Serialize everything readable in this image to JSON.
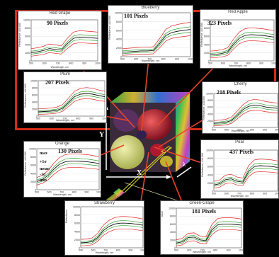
{
  "panels": [
    {
      "key": "red_grape",
      "title": "Red Grape",
      "count": "90 Pixels",
      "ylabel": "Reflectance, x10,000",
      "xlabel": "Wavelength, nm",
      "yticks": [
        "10000",
        "8000",
        "6000",
        "4000",
        "2000",
        "0"
      ],
      "xticks": [
        "500",
        "600",
        "700",
        "800",
        "900",
        "1000"
      ]
    },
    {
      "key": "blueberry",
      "title": "Blueberry",
      "count": "101 Pixels",
      "ylabel": "Reflectance, x10,000",
      "xlabel": "Wavelength, nm",
      "yticks": [
        "10000",
        "8000",
        "6000",
        "4000",
        "2000",
        "0"
      ],
      "xticks": [
        "500",
        "600",
        "700",
        "800",
        "900",
        "1000"
      ]
    },
    {
      "key": "red_apple",
      "title": "Red Apple",
      "count": "323 Pixels",
      "ylabel": "Reflectance, x10,000",
      "xlabel": "Wavelength, nm",
      "yticks": [
        "10000",
        "8000",
        "6000",
        "4000",
        "2000",
        "0"
      ],
      "xticks": [
        "500",
        "600",
        "700",
        "800",
        "900",
        "1000"
      ]
    },
    {
      "key": "plum",
      "title": "Plum",
      "count": "207 Pixels",
      "ylabel": "Reflectance, x10,000",
      "xlabel": "Wavelength, nm",
      "yticks": [
        "10000",
        "8000",
        "6000",
        "4000",
        "2000",
        "0"
      ],
      "xticks": [
        "500",
        "600",
        "700",
        "800",
        "900",
        "1000"
      ]
    },
    {
      "key": "cherry",
      "title": "Cherry",
      "count": "218 Pixels",
      "ylabel": "Reflectance, x10,000",
      "xlabel": "Wavelength, nm",
      "yticks": [
        "10000",
        "8000",
        "6000",
        "4000",
        "2000",
        "0"
      ],
      "xticks": [
        "500",
        "600",
        "700",
        "800",
        "900",
        "1000"
      ]
    },
    {
      "key": "orange",
      "title": "Orange",
      "count": "130 Pixels",
      "ylabel": "Reflectance, x10,000",
      "xlabel": "Wavelength, nm",
      "yticks": [
        "10000",
        "8000",
        "6000",
        "4000",
        "2000",
        "0"
      ],
      "xticks": [
        "500",
        "600",
        "700",
        "800",
        "900",
        "1000"
      ],
      "stats": [
        "max",
        "+1σ",
        "mean",
        "-1σ",
        "min"
      ]
    },
    {
      "key": "pear",
      "title": "Pear",
      "count": "437 Pixels",
      "ylabel": "Reflectance, x10,000",
      "xlabel": "Wavelength, nm",
      "yticks": [
        "10000",
        "8000",
        "6000",
        "4000",
        "2000",
        "0"
      ],
      "xticks": [
        "500",
        "600",
        "700",
        "800",
        "900",
        "1000"
      ]
    },
    {
      "key": "strawberry",
      "title": "Strawberry",
      "count": "",
      "ylabel": "Reflectance",
      "xlabel": "Wavelength, nm",
      "yticks": [
        "10000",
        "8000",
        "6000",
        "4000",
        "2000",
        "0"
      ],
      "xticks": [
        "500",
        "600",
        "700",
        "800",
        "900",
        "1000"
      ]
    },
    {
      "key": "green_grape",
      "title": "Green-Grape",
      "count": "181 Pixels",
      "ylabel": "Value",
      "xlabel": "Wavelength, nm",
      "yticks": [
        "10000",
        "8000",
        "6000",
        "4000",
        "2000",
        "0"
      ],
      "xticks": [
        "500",
        "600",
        "700",
        "800",
        "900",
        "1000"
      ]
    }
  ],
  "cube_axes": {
    "y": "Y",
    "x": "X",
    "lambda": "λ"
  },
  "colors": {
    "frame": "#d42a18",
    "arrow": "#e8452a",
    "min_max": "#e02222",
    "sigma": "#2e9e2e",
    "mean": "#111111",
    "wire": "#dddd22"
  }
}
